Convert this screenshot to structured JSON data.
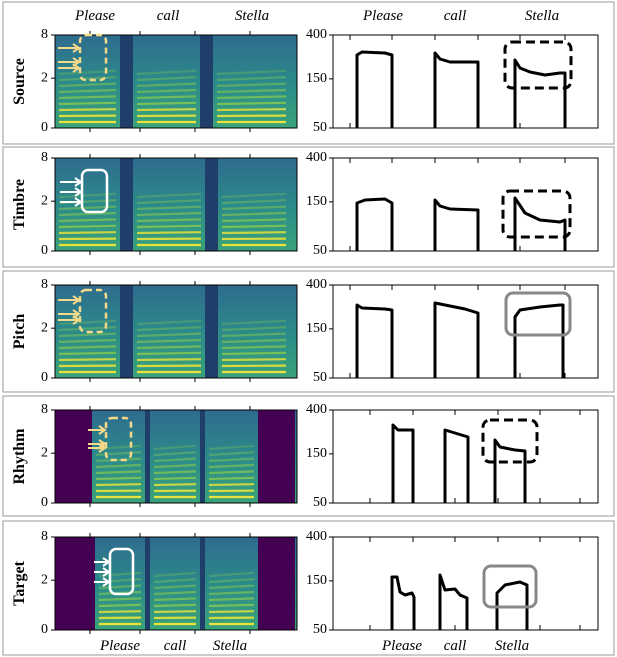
{
  "top_words_left": [
    "Please",
    "call",
    "Stella"
  ],
  "top_words_right": [
    "Please",
    "call",
    "Stella"
  ],
  "bottom_words_left": [
    "Please",
    "call",
    "Stella"
  ],
  "bottom_words_right": [
    "Please",
    "call",
    "Stella"
  ],
  "spectrogram_axis": {
    "scale": "mel",
    "ylim": [
      0,
      8
    ],
    "yticks": [
      0,
      2,
      8
    ]
  },
  "pitch_axis": {
    "scale": "log",
    "ylim": [
      50,
      400
    ],
    "yticks": [
      50,
      150,
      400
    ]
  },
  "rows": [
    {
      "label": "Source"
    },
    {
      "label": "Timbre"
    },
    {
      "label": "Pitch"
    },
    {
      "label": "Rhythm"
    },
    {
      "label": "Target"
    }
  ]
}
